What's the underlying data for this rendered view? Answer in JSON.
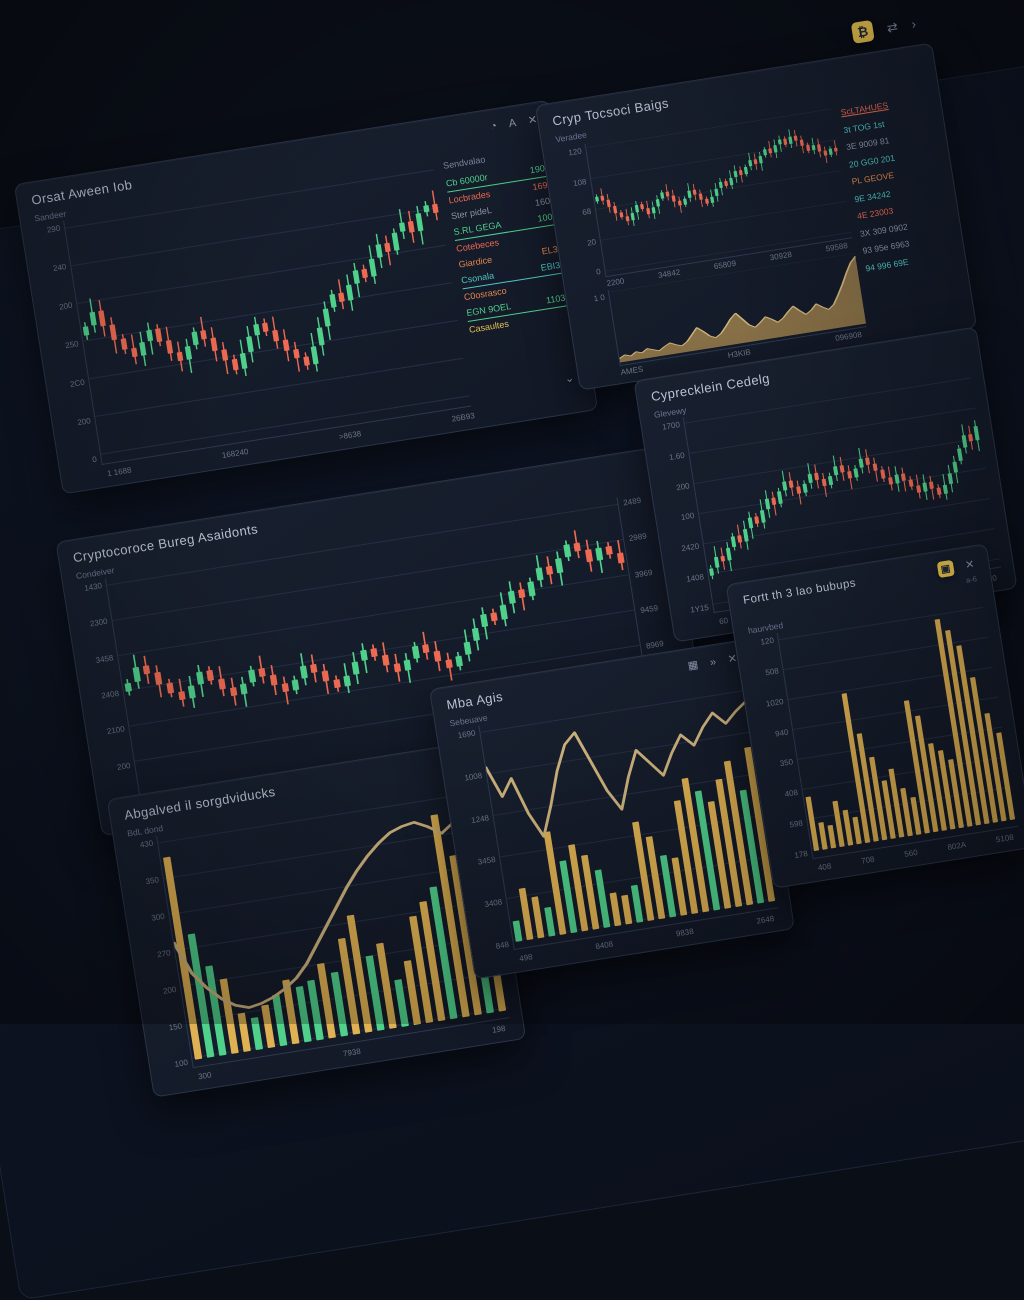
{
  "palette": {
    "green": "#4fd08b",
    "red": "#ee6a52",
    "gold": "#dfb152",
    "teal": "#4fc8c4",
    "orange": "#e8884f",
    "yellow": "#e6c254",
    "gray": "#8b94a7",
    "tan_line": "#cdb27c",
    "area_fill": "#93794a",
    "grid": "#242e44"
  },
  "toolbar": {
    "bitcoin_badge": "₿",
    "transfer_icon": "⇄",
    "chevron": "›"
  },
  "panels": {
    "a": {
      "title": "Orsat Aween Iob",
      "subtitle": "Sandeer",
      "icons": [
        "◔",
        "A",
        "✕"
      ],
      "yticks": [
        "290",
        "240",
        "200",
        "250",
        "2C0",
        "200",
        "0"
      ],
      "xticks": [
        "1 1688",
        "168240",
        ">8638",
        "26B93"
      ],
      "watchlist": {
        "header": "Sendvalao",
        "chevron": "⌄",
        "rows": [
          {
            "label": "Cb 60000r",
            "value": "190",
            "color": "green",
            "underline": true
          },
          {
            "label": "Locbrades",
            "value": "169",
            "color": "red",
            "underline": false
          },
          {
            "label": "Ster pideL",
            "value": "160",
            "color": "gray",
            "underline": false
          },
          {
            "label": "S.RL GEGA",
            "value": "100",
            "color": "green",
            "underline": true
          },
          {
            "label": "Cotebeces",
            "value": "",
            "color": "red",
            "underline": false
          },
          {
            "label": "Giardice",
            "value": "EL3",
            "color": "orange",
            "underline": false
          },
          {
            "label": "Csonala",
            "value": "EBI3",
            "color": "teal",
            "underline": true
          },
          {
            "label": "C0osrasco",
            "value": "",
            "color": "orange",
            "underline": false
          },
          {
            "label": "EGN 9OEL",
            "value": "1103",
            "color": "green",
            "underline": true
          },
          {
            "label": "Casaultes",
            "value": "",
            "color": "yellow",
            "underline": false
          }
        ]
      },
      "chart_data": {
        "type": "candlestick",
        "closes": [
          58,
          64,
          57,
          50,
          45,
          41,
          47,
          52,
          46,
          40,
          36,
          42,
          48,
          44,
          38,
          33,
          28,
          35,
          42,
          47,
          43,
          38,
          33,
          29,
          25,
          33,
          41,
          49,
          55,
          51,
          58,
          64,
          60,
          68,
          74,
          70,
          78,
          82,
          77,
          85,
          88,
          84
        ]
      }
    },
    "b": {
      "title": "Cryp Tocsoci Baigs",
      "subtitle": "Veradee",
      "yticks": [
        "120",
        "108",
        "68",
        "20",
        "0"
      ],
      "xticks": [
        "2200",
        "34842",
        "65809",
        "30928",
        "59588"
      ],
      "yticks2": [
        "1 0"
      ],
      "xticks2": [
        "AMES",
        "H3KIB",
        "096908"
      ],
      "legend": {
        "rows": [
          {
            "text": "ScLTAHUES",
            "color": "red",
            "underline": true
          },
          {
            "text": "3t TOG 1st",
            "color": "teal",
            "underline": false
          },
          {
            "text": "3E 9009 81",
            "color": "gray",
            "underline": false
          },
          {
            "text": "20 GG0 201",
            "color": "teal",
            "underline": false
          },
          {
            "text": "PL GEOVE",
            "color": "orange",
            "underline": false
          },
          {
            "text": "9E 34242",
            "color": "teal",
            "underline": false
          },
          {
            "text": "4E 23003",
            "color": "red",
            "underline": false
          },
          {
            "text": "3X 309 0902",
            "color": "gray",
            "underline": false
          },
          {
            "text": "93 95e 6963",
            "color": "gray",
            "underline": false
          },
          {
            "text": "94 996 69E",
            "color": "teal",
            "underline": false
          }
        ]
      },
      "chart_data": {
        "type": "candlestick",
        "closes": [
          62,
          58,
          52,
          46,
          42,
          38,
          44,
          50,
          46,
          41,
          46,
          52,
          57,
          53,
          48,
          44,
          49,
          55,
          51,
          46,
          42,
          47,
          53,
          58,
          54,
          60,
          65,
          61,
          67,
          72,
          68,
          74,
          79,
          75,
          81,
          85,
          80,
          86,
          82,
          77,
          72,
          76,
          70,
          66,
          71,
          68
        ],
        "volume": {
          "type": "area",
          "values": [
            6,
            10,
            7,
            12,
            9,
            14,
            11,
            8,
            13,
            17,
            13,
            10,
            15,
            24,
            33,
            26,
            18,
            14,
            19,
            28,
            38,
            45,
            35,
            25,
            20,
            26,
            33,
            28,
            22,
            27,
            35,
            42,
            34,
            27,
            32,
            40,
            34,
            29,
            35,
            48,
            62,
            78,
            92,
            100
          ]
        }
      }
    },
    "c": {
      "title": "Cryptocoroce Bureg Asaidonts",
      "subtitle": "Condeiver",
      "yticks": [
        "1430",
        "2300",
        "3458",
        "2408",
        "2100",
        "200",
        "1.0"
      ],
      "yticks_right": [
        "2489",
        "2989",
        "3969",
        "9459",
        "8969",
        "3089",
        "8489"
      ],
      "xticks": [
        "2580",
        "15980",
        ">8580",
        "28060"
      ],
      "chart_data": {
        "type": "candlestick",
        "closes": [
          55,
          62,
          58,
          52,
          47,
          43,
          49,
          55,
          50,
          45,
          41,
          46,
          52,
          48,
          43,
          39,
          44,
          50,
          46,
          41,
          37,
          42,
          48,
          53,
          49,
          44,
          40,
          45,
          51,
          47,
          42,
          38,
          43,
          49,
          55,
          61,
          57,
          64,
          70,
          66,
          73,
          79,
          75,
          82,
          88,
          84,
          78,
          84,
          80,
          75
        ]
      }
    },
    "d": {
      "title": "Cyprecklein Cedelg",
      "subtitle": "Glevewy",
      "yticks": [
        "1700",
        "1.60",
        "200",
        "100",
        "2420",
        "1408",
        "1Y15"
      ],
      "xticks": [
        "60",
        "048",
        "1409",
        "1300"
      ],
      "chart_data": {
        "type": "candlestick",
        "closes": [
          20,
          26,
          23,
          30,
          36,
          32,
          39,
          45,
          41,
          48,
          54,
          50,
          57,
          62,
          58,
          54,
          59,
          64,
          60,
          56,
          61,
          66,
          62,
          58,
          63,
          68,
          64,
          60,
          55,
          51,
          56,
          52,
          48,
          44,
          49,
          45,
          41,
          46,
          52,
          58,
          65,
          72,
          68,
          76
        ]
      }
    },
    "e": {
      "title": "Abgalved il sorgdviducks",
      "subtitle": "BdL dond",
      "yticks": [
        "430",
        "350",
        "300",
        "270",
        "200",
        "150",
        "100"
      ],
      "xticks": [
        "300",
        "7938",
        "198"
      ],
      "chart_data": {
        "type": "bars",
        "values": [
          95,
          58,
          42,
          35,
          18,
          15,
          20,
          24,
          30,
          26,
          28,
          35,
          30,
          45,
          55,
          35,
          40,
          22,
          30,
          50,
          56,
          62,
          95,
          75,
          52,
          46
        ],
        "colors": [
          "y",
          "g",
          "g",
          "y",
          "y",
          "g",
          "y",
          "g",
          "y",
          "g",
          "g",
          "y",
          "g",
          "y",
          "y",
          "g",
          "y",
          "g",
          "y",
          "y",
          "y",
          "g",
          "y",
          "y",
          "g",
          "y"
        ],
        "line": [
          55,
          40,
          32,
          26,
          22,
          20,
          21,
          23,
          26,
          30,
          36,
          44,
          52,
          60,
          68,
          75,
          81,
          86,
          90,
          92,
          93,
          90,
          86,
          90,
          94,
          92
        ]
      }
    },
    "f": {
      "title": "Mba Agis",
      "subtitle": "Sebeuave",
      "icons": [
        "▦",
        "»",
        "✕"
      ],
      "yticks": [
        "1690",
        "1008",
        "1248",
        "3458",
        "3408",
        "848"
      ],
      "xticks": [
        "498",
        "8408",
        "9838",
        "2648"
      ],
      "chart_data": {
        "type": "bars",
        "values": [
          10,
          25,
          20,
          14,
          50,
          35,
          42,
          36,
          28,
          16,
          14,
          18,
          48,
          40,
          30,
          28,
          55,
          65,
          58,
          52,
          62,
          70,
          55,
          75
        ],
        "colors": [
          "g",
          "y",
          "y",
          "g",
          "y",
          "g",
          "y",
          "y",
          "g",
          "y",
          "y",
          "g",
          "y",
          "y",
          "g",
          "y",
          "y",
          "y",
          "g",
          "y",
          "y",
          "y",
          "g",
          "y"
        ],
        "line": [
          85,
          70,
          78,
          60,
          48,
          62,
          78,
          90,
          95,
          80,
          65,
          55,
          70,
          82,
          75,
          68,
          78,
          86,
          80,
          88,
          94,
          88,
          93,
          97
        ]
      }
    },
    "g": {
      "title": "Fortt th 3 lao bubups",
      "subtitle": "haurvbed",
      "badge": "▣",
      "close": "✕",
      "meta": "a-6",
      "yticks": [
        "120",
        "508",
        "1020",
        "940",
        "350",
        "408",
        "598",
        "178"
      ],
      "xticks": [
        "408",
        "708",
        "560",
        "802A",
        "5108"
      ],
      "chart_data": {
        "type": "bars",
        "values": [
          26,
          13,
          11,
          22,
          17,
          13,
          72,
          52,
          40,
          28,
          33,
          23,
          18,
          64,
          56,
          42,
          38,
          33,
          100,
          94,
          86,
          70,
          52,
          42
        ],
        "colors": [
          "y",
          "y",
          "y",
          "y",
          "y",
          "y",
          "y",
          "y",
          "y",
          "y",
          "y",
          "y",
          "y",
          "y",
          "y",
          "y",
          "y",
          "y",
          "y",
          "y",
          "y",
          "y",
          "y",
          "y"
        ]
      }
    }
  }
}
